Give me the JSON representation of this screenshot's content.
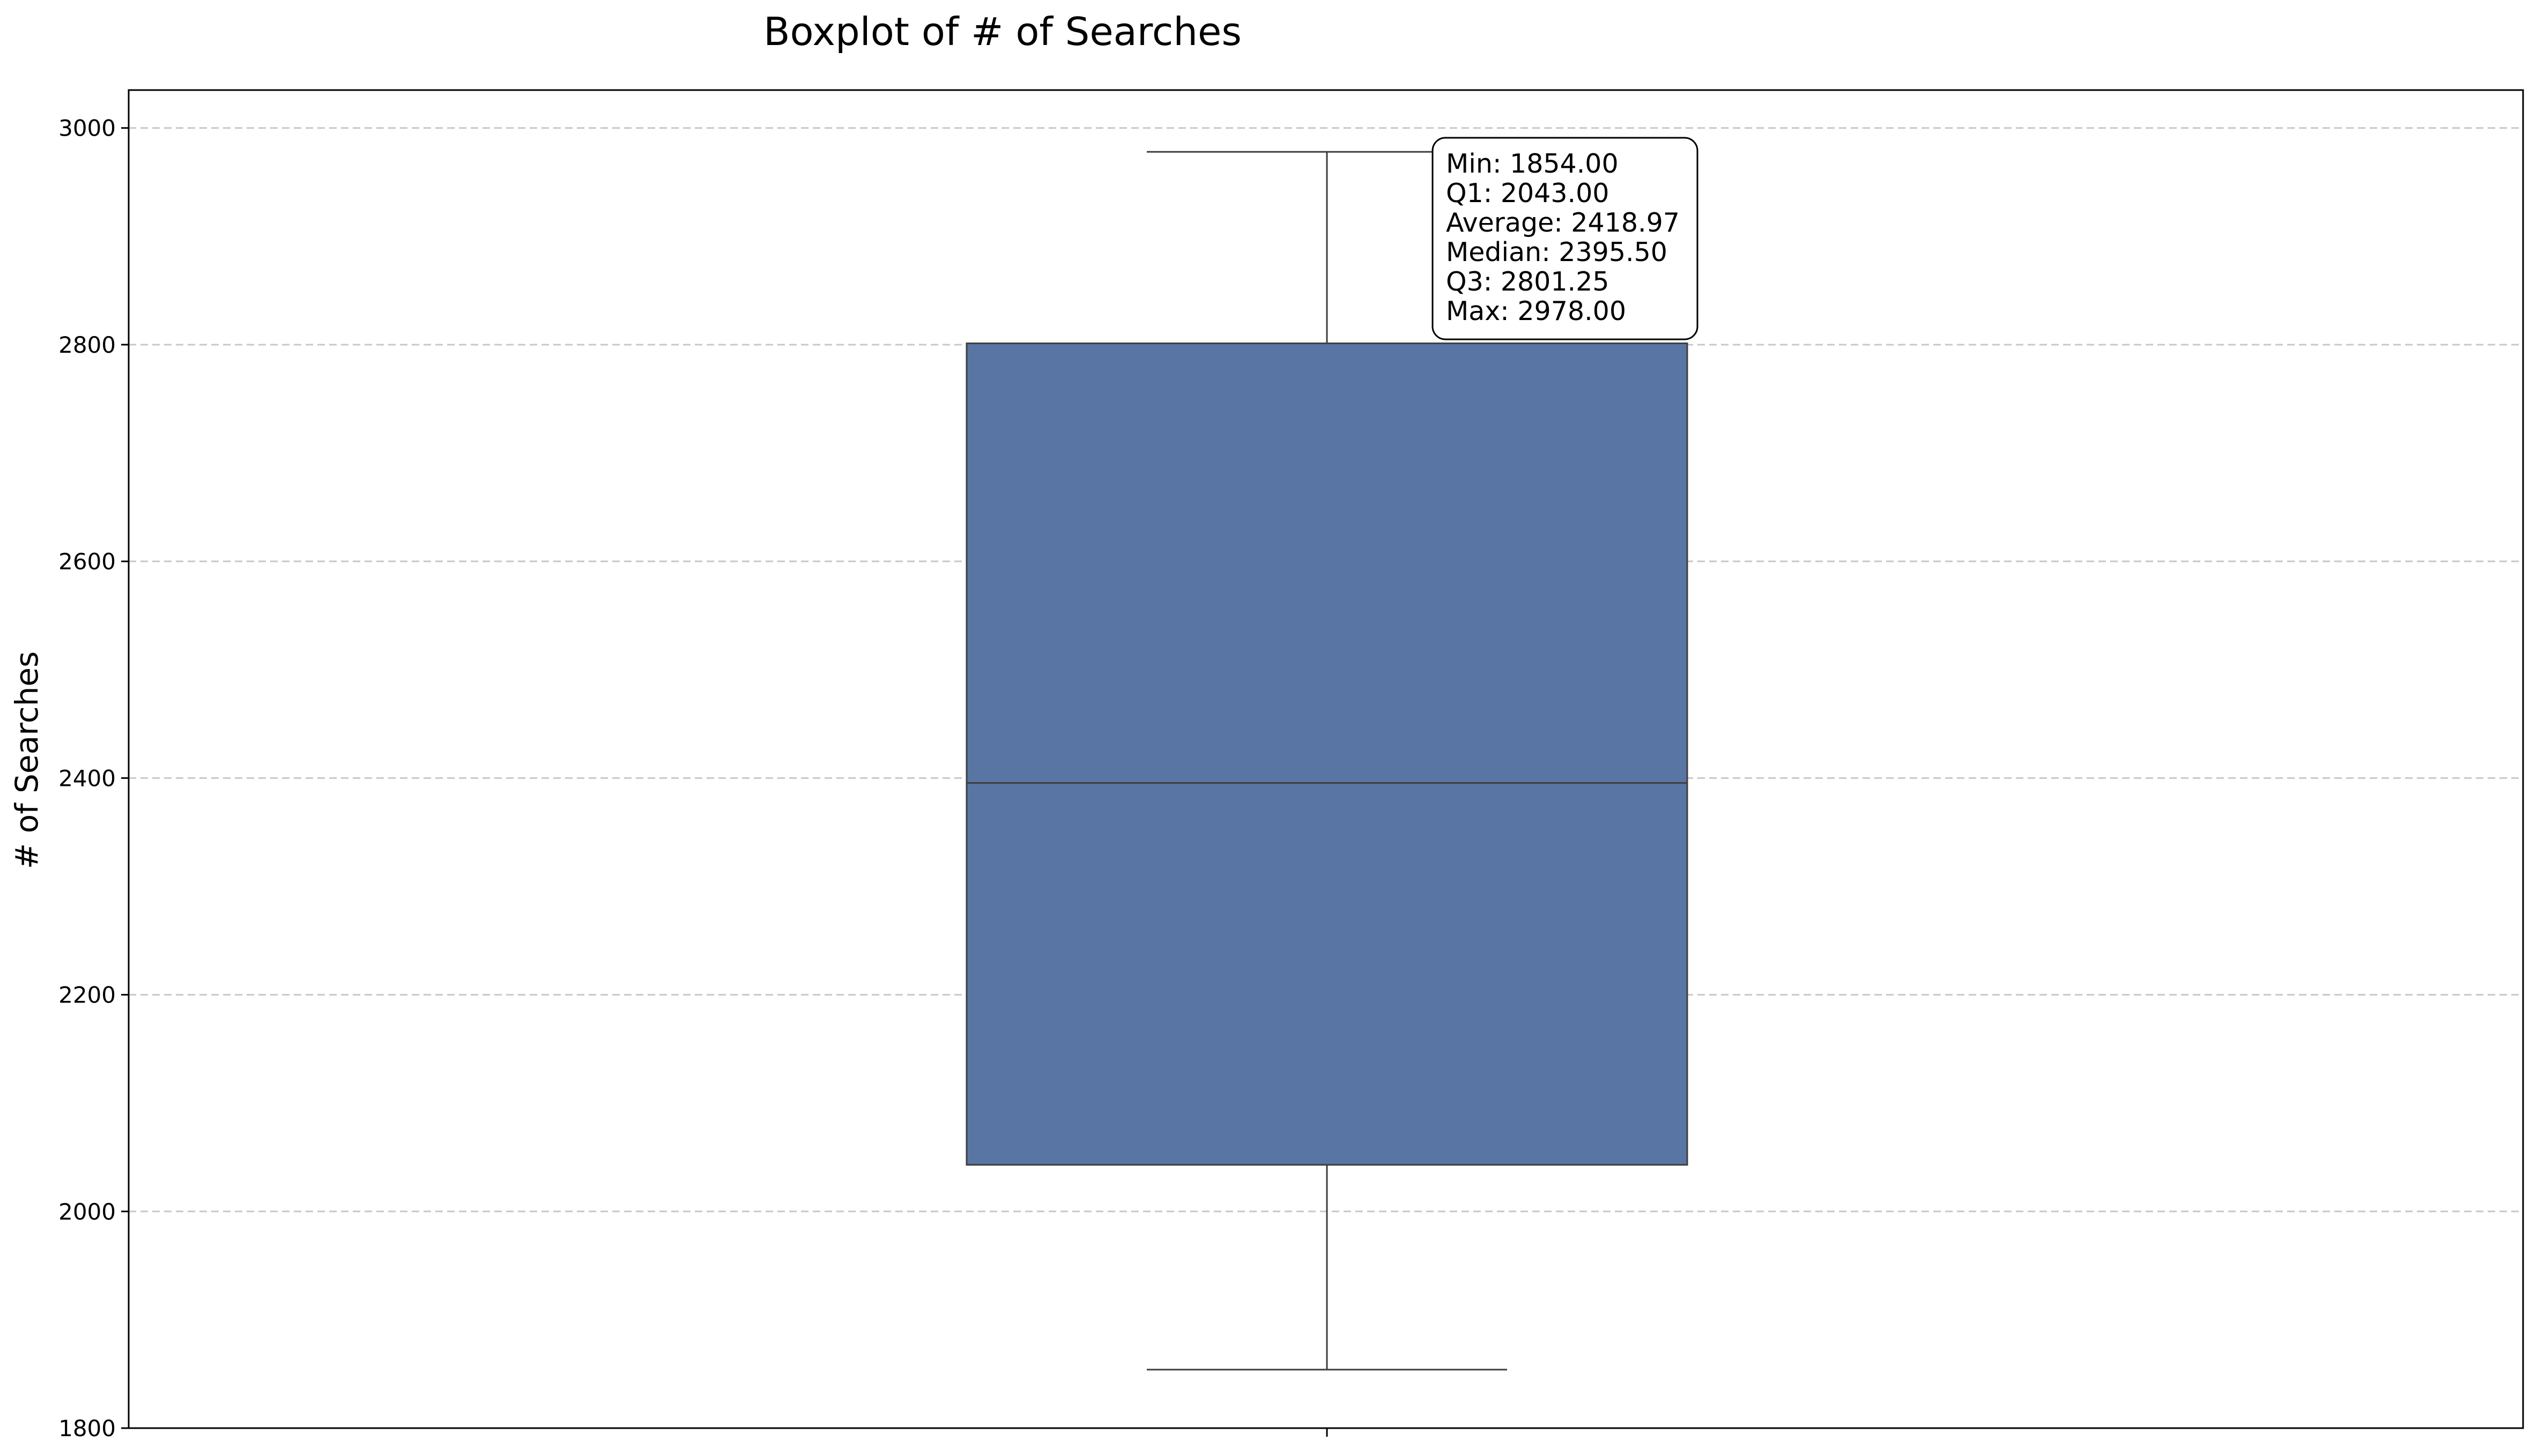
{
  "chart_data": {
    "type": "box",
    "title": "Boxplot of # of Searches",
    "xlabel": "",
    "ylabel": "# of Searches",
    "ylim": [
      1800,
      3035
    ],
    "yticks": [
      1800,
      2000,
      2200,
      2400,
      2600,
      2800,
      3000
    ],
    "grid": true,
    "grid_style": "dashed",
    "colors": {
      "box_fill": "#5975a4",
      "box_edge": "#3f3f3f",
      "grid": "#c8c8c8"
    },
    "box": {
      "min": 1854.0,
      "q1": 2043.0,
      "average": 2418.97,
      "median": 2395.5,
      "q3": 2801.25,
      "max": 2978.0
    },
    "stats_box": {
      "lines": [
        "Min: 1854.00",
        "Q1: 2043.00",
        "Average: 2418.97",
        "Median: 2395.50",
        "Q3: 2801.25",
        "Max: 2978.00"
      ]
    }
  }
}
